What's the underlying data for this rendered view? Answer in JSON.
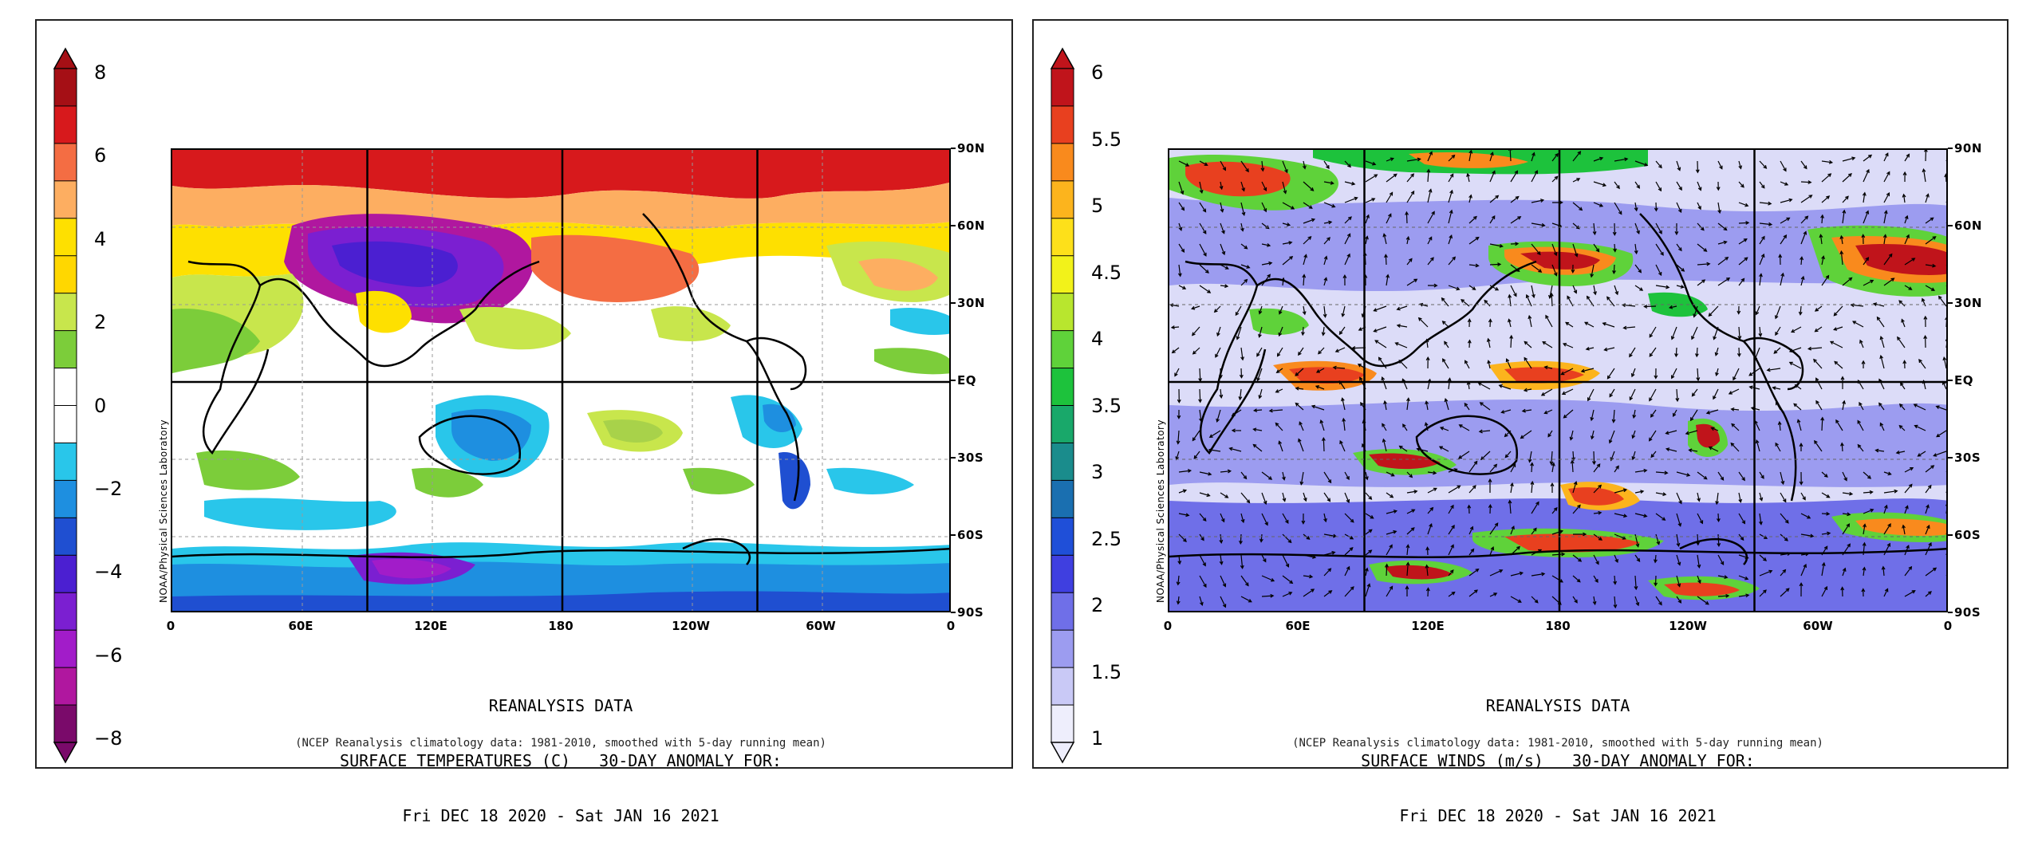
{
  "left_panel": {
    "colorbar": {
      "labels": [
        "8",
        "6",
        "4",
        "2",
        "0",
        "−2",
        "−4",
        "−6",
        "−8"
      ],
      "colors": [
        "#a50f15",
        "#d7191c",
        "#f46d43",
        "#fdae61",
        "#fee000",
        "#ffd700",
        "#c8e64c",
        "#7ccd3a",
        "#ffffff",
        "#ffffff",
        "#29c6ea",
        "#1e8fe0",
        "#1f4fd1",
        "#4b1fd1",
        "#7b1fd1",
        "#a21cc9",
        "#b0179f",
        "#7a0a6a"
      ]
    },
    "lat_labels": [
      "90N",
      "60N",
      "30N",
      "EQ",
      "30S",
      "60S",
      "90S"
    ],
    "lon_labels": [
      "0",
      "60E",
      "120E",
      "180",
      "120W",
      "60W",
      "0"
    ],
    "credit": "NOAA/Physical Sciences Laboratory",
    "caption": {
      "line1": "REANALYSIS DATA",
      "line2": "SURFACE TEMPERATURES (C)   30-DAY ANOMALY FOR:",
      "line3": "Fri DEC 18 2020 - Sat JAN 16 2021"
    },
    "footnote": "(NCEP Reanalysis climatology data: 1981-2010, smoothed with 5-day running mean)"
  },
  "right_panel": {
    "colorbar": {
      "labels": [
        "6",
        "5.5",
        "5",
        "4.5",
        "4",
        "3.5",
        "3",
        "2.5",
        "2",
        "1.5",
        "1"
      ],
      "colors": [
        "#c0141b",
        "#e8401f",
        "#f98a1d",
        "#fcb41d",
        "#fde01a",
        "#f2f21a",
        "#b8e62e",
        "#5fd23a",
        "#1dc23c",
        "#19a86a",
        "#1a8c8c",
        "#1a6fb0",
        "#1f4fd8",
        "#3f3fe0",
        "#6f6fe8",
        "#9c9cf0",
        "#c9c9f6",
        "#eeeefc"
      ]
    },
    "lat_labels": [
      "90N",
      "60N",
      "30N",
      "EQ",
      "30S",
      "60S",
      "90S"
    ],
    "lon_labels": [
      "0",
      "60E",
      "120E",
      "180",
      "120W",
      "60W",
      "0"
    ],
    "credit": "NOAA/Physical Sciences Laboratory",
    "caption": {
      "line1": "REANALYSIS DATA",
      "line2": "SURFACE WINDS (m/s)   30-DAY ANOMALY FOR:",
      "line3": "Fri DEC 18 2020 - Sat JAN 16 2021"
    },
    "footnote": "(NCEP Reanalysis climatology data: 1981-2010, smoothed with 5-day running mean)"
  }
}
